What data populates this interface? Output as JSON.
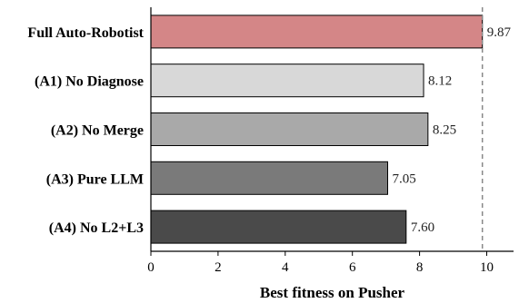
{
  "chart_data": {
    "type": "bar",
    "orientation": "horizontal",
    "categories": [
      "Full Auto-Robotist",
      "(A1) No Diagnose",
      "(A2) No Merge",
      "(A3) Pure LLM",
      "(A4) No L2+L3"
    ],
    "values": [
      9.87,
      8.12,
      8.25,
      7.05,
      7.6
    ],
    "value_labels": [
      "9.87",
      "8.12",
      "8.25",
      "7.05",
      "7.60"
    ],
    "colors": [
      "#d48687",
      "#d8d8d8",
      "#a9a9a9",
      "#7a7a7a",
      "#4a4a4a"
    ],
    "xlabel": "Best fitness on Pusher",
    "xlim": [
      0,
      10.8
    ],
    "xticks": [
      0,
      2,
      4,
      6,
      8,
      10
    ],
    "xtick_labels": [
      "0",
      "2",
      "4",
      "6",
      "8",
      "10"
    ],
    "reference_line": {
      "value": 9.87,
      "style": "dashed",
      "color": "#888888"
    },
    "grid": false
  }
}
